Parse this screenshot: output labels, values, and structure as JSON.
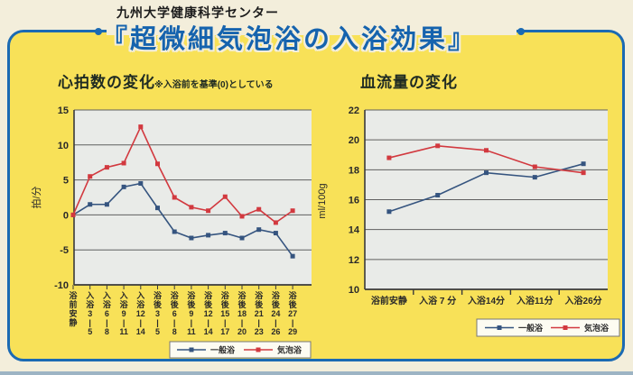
{
  "page": {
    "organization": "九州大学健康科学センター",
    "main_title": "『超微細気泡浴の入浴効果』"
  },
  "colors": {
    "page_background": "#f3eedb",
    "panel_fill": "#f8e158",
    "panel_border": "#1b6ab3",
    "title_text": "#1563ae",
    "heading_text": "#1e2a22",
    "plot_background": "#e9ebe8",
    "gridline": "#5f5f5f",
    "axis_text": "#2a2a2a",
    "general_bath_color": "#35547f",
    "bubble_bath_color": "#d2393f",
    "legend_box_fill": "#fdfcf2",
    "legend_box_border": "#777777"
  },
  "chart_data": [
    {
      "type": "line",
      "title": "心拍数の変化",
      "subtitle": "※入浴前を基準(0)としている",
      "ylabel": "拍/分",
      "ylim": [
        -10,
        15
      ],
      "yticks": [
        15,
        10,
        5,
        0,
        -5,
        -10
      ],
      "grid": true,
      "legend_position": "bottom",
      "xlabel_orientation": "vertical",
      "categories_segments": [
        [
          "浴",
          "前",
          "安",
          "静"
        ],
        [
          "入",
          "浴",
          "3",
          "|",
          "5"
        ],
        [
          "入",
          "浴",
          "6",
          "|",
          "8"
        ],
        [
          "入",
          "浴",
          "9",
          "|",
          "11"
        ],
        [
          "入",
          "浴",
          "12",
          "|",
          "14"
        ],
        [
          "浴",
          "後",
          "3",
          "|",
          "5"
        ],
        [
          "浴",
          "後",
          "6",
          "|",
          "8"
        ],
        [
          "浴",
          "後",
          "9",
          "|",
          "11"
        ],
        [
          "浴",
          "後",
          "12",
          "|",
          "14"
        ],
        [
          "浴",
          "後",
          "15",
          "|",
          "17"
        ],
        [
          "浴",
          "後",
          "18",
          "|",
          "20"
        ],
        [
          "浴",
          "後",
          "21",
          "|",
          "23"
        ],
        [
          "浴",
          "後",
          "24",
          "|",
          "26"
        ],
        [
          "浴",
          "後",
          "27",
          "|",
          "29"
        ]
      ],
      "series": [
        {
          "name": "一般浴",
          "values": [
            0,
            1.5,
            1.5,
            4,
            4.5,
            1,
            -2.4,
            -3.3,
            -2.9,
            -2.6,
            -3.3,
            -2.1,
            -2.6,
            -5.9
          ]
        },
        {
          "name": "気泡浴",
          "values": [
            0,
            5.5,
            6.8,
            7.4,
            12.6,
            7.3,
            2.5,
            1.1,
            0.6,
            2.6,
            -0.2,
            0.8,
            -1.1,
            0.6
          ]
        }
      ]
    },
    {
      "type": "line",
      "title": "血流量の変化",
      "subtitle": "",
      "ylabel": "ml/100g",
      "ylim": [
        10,
        22
      ],
      "yticks": [
        22,
        20,
        18,
        16,
        14,
        12,
        10
      ],
      "grid": true,
      "legend_position": "bottom-right",
      "xlabel_orientation": "horizontal",
      "categories": [
        "浴前安静",
        "入浴 7 分",
        "入浴14分",
        "入浴11分",
        "入浴26分"
      ],
      "series": [
        {
          "name": "一般浴",
          "values": [
            15.2,
            16.3,
            17.8,
            17.5,
            18.4
          ]
        },
        {
          "name": "気泡浴",
          "values": [
            18.8,
            19.6,
            19.3,
            18.2,
            17.8
          ]
        }
      ]
    }
  ]
}
